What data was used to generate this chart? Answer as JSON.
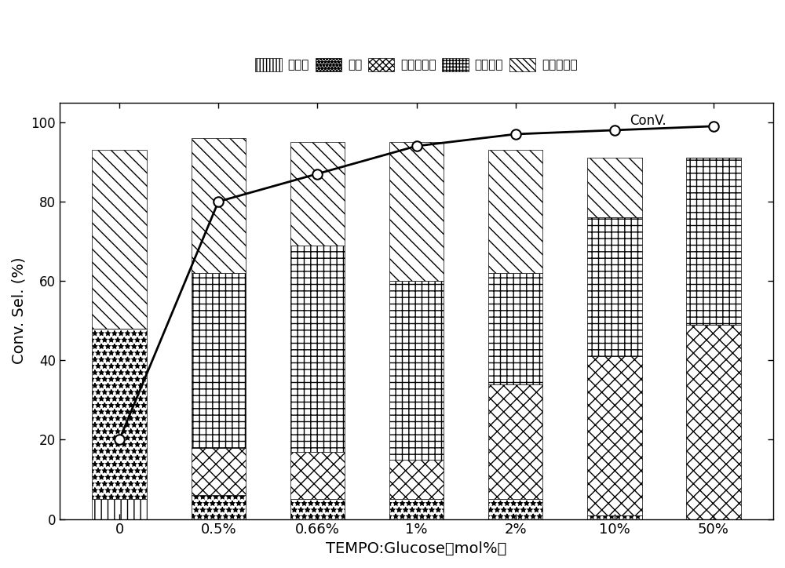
{
  "categories": [
    "0",
    "0.5%",
    "0.66%",
    "1%",
    "2%",
    "10%",
    "50%"
  ],
  "conversion": [
    20,
    80,
    87,
    94,
    97,
    98,
    99
  ],
  "bar_data": {
    "tartaric": [
      5,
      0,
      0,
      0,
      0,
      0,
      0
    ],
    "oxalic": [
      43,
      6,
      5,
      5,
      5,
      1,
      0
    ],
    "glucuronic": [
      0,
      12,
      12,
      10,
      29,
      40,
      49
    ],
    "gluconic": [
      0,
      44,
      52,
      45,
      28,
      35,
      42
    ],
    "glucaric": [
      45,
      34,
      26,
      35,
      31,
      15,
      0
    ]
  },
  "legend_labels": [
    "酒石酸",
    "草酸",
    "葡萄糖醇酸",
    "葡萄糖酸",
    "葡萄糖二酸"
  ],
  "xlabel": "TEMPO:Glucose（mol%）",
  "ylabel": "Conv. Sel. (%)",
  "conv_label": "ConV.",
  "ylim": [
    0,
    105
  ],
  "bar_width": 0.55,
  "figsize": [
    10.0,
    7.24
  ],
  "dpi": 100
}
